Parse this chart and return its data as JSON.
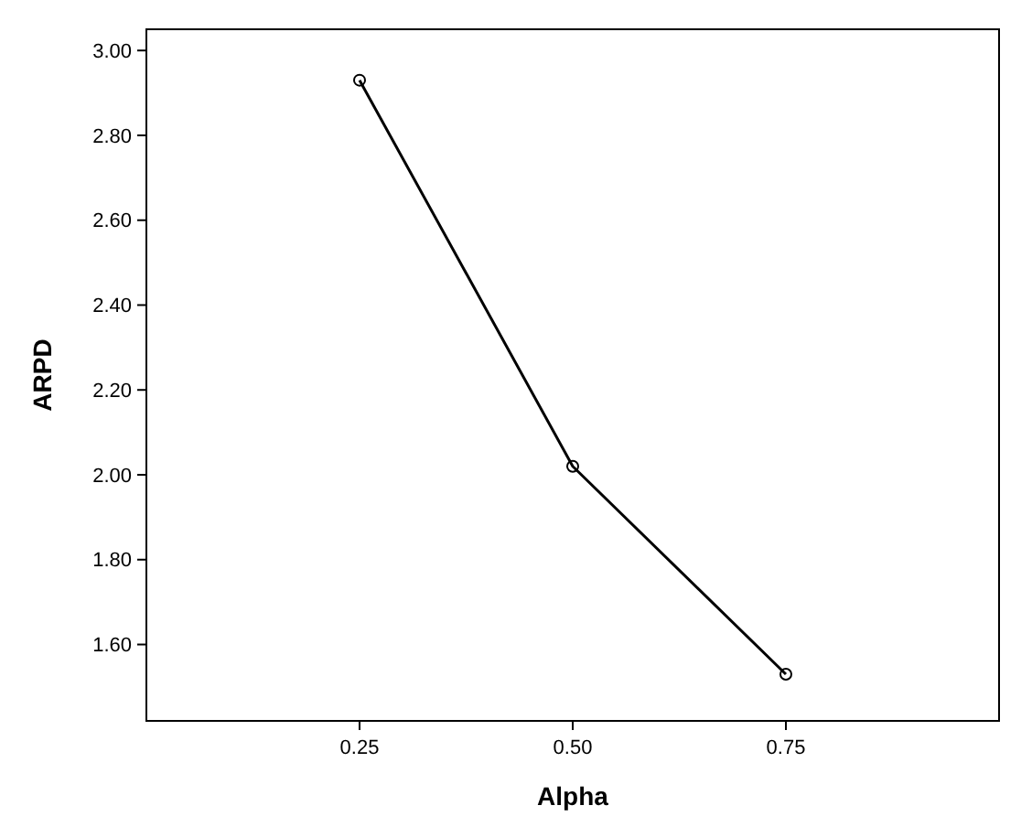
{
  "chart_data": {
    "type": "line",
    "xlabel": "Alpha",
    "ylabel": "ARPD",
    "categories": [
      "0.25",
      "0.50",
      "0.75"
    ],
    "series": [
      {
        "color": "#000000",
        "values": [
          2.93,
          2.02,
          1.53
        ]
      }
    ],
    "ylim": [
      1.42,
      3.05
    ],
    "yticks": [
      {
        "value": 1.6,
        "label": "1.60"
      },
      {
        "value": 1.8,
        "label": "1.80"
      },
      {
        "value": 2.0,
        "label": "2.00"
      },
      {
        "value": 2.2,
        "label": "2.20"
      },
      {
        "value": 2.4,
        "label": "2.40"
      },
      {
        "value": 2.6,
        "label": "2.60"
      },
      {
        "value": 2.8,
        "label": "2.80"
      },
      {
        "value": 3.0,
        "label": "3.00"
      }
    ],
    "grid": false,
    "marker": "circle",
    "line_style": "solid"
  }
}
